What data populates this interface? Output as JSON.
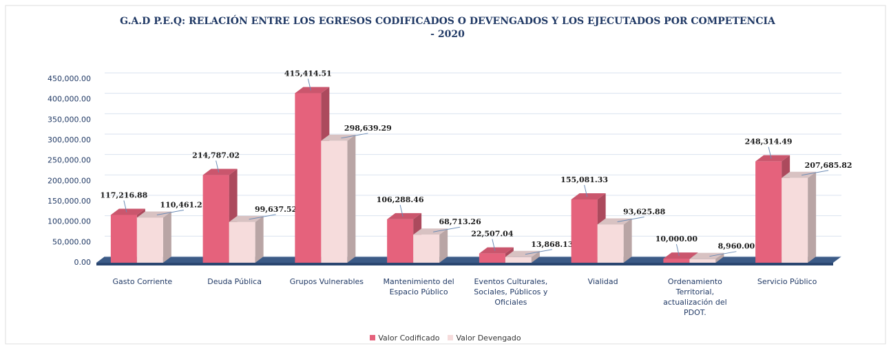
{
  "chart_data": {
    "type": "bar3d",
    "title": "G.A.D P.E.Q: RELACIÓN ENTRE LOS EGRESOS CODIFICADOS O DEVENGADOS Y LOS EJECUTADOS POR COMPETENCIA - 2020",
    "categories": [
      "Gasto Corriente",
      "Deuda Pública",
      "Grupos Vulnerables",
      "Mantenimiento del Espacio Público",
      "Eventos Culturales, Sociales, Públicos y Oficiales",
      "Vialidad",
      "Ordenamiento Territorial, actualización del PDOT.",
      "Servicio Público"
    ],
    "series": [
      {
        "name": "Valor Codificado",
        "color": "#e5627c",
        "values": [
          117216.88,
          214787.02,
          415414.51,
          106288.46,
          22507.04,
          155081.33,
          10000.0,
          248314.49
        ],
        "value_labels": [
          "117,216.88",
          "214,787.02",
          "415,414.51",
          "106,288.46",
          "22,507.04",
          "155,081.33",
          "10,000.00",
          "248,314.49"
        ]
      },
      {
        "name": "Valor Devengado",
        "color": "#f6dcdc",
        "values": [
          110461.25,
          99637.52,
          298639.29,
          68713.26,
          13868.13,
          93625.88,
          8960.0,
          207685.82
        ],
        "value_labels": [
          "110,461.25",
          "99,637.52",
          "298,639.29",
          "68,713.26",
          "13,868.13",
          "93,625.88",
          "8,960.00",
          "207,685.82"
        ]
      }
    ],
    "ylim": [
      0,
      450000
    ],
    "yticks": [
      {
        "value": 0,
        "label": "0.00"
      },
      {
        "value": 50000,
        "label": "50,000.00"
      },
      {
        "value": 100000,
        "label": "100,000.00"
      },
      {
        "value": 150000,
        "label": "150,000.00"
      },
      {
        "value": 200000,
        "label": "200,000.00"
      },
      {
        "value": 250000,
        "label": "250,000.00"
      },
      {
        "value": 300000,
        "label": "300,000.00"
      },
      {
        "value": 350000,
        "label": "350,000.00"
      },
      {
        "value": 400000,
        "label": "400,000.00"
      },
      {
        "value": 450000,
        "label": "450,000.00"
      }
    ],
    "grid": true,
    "legend": "bottom"
  }
}
